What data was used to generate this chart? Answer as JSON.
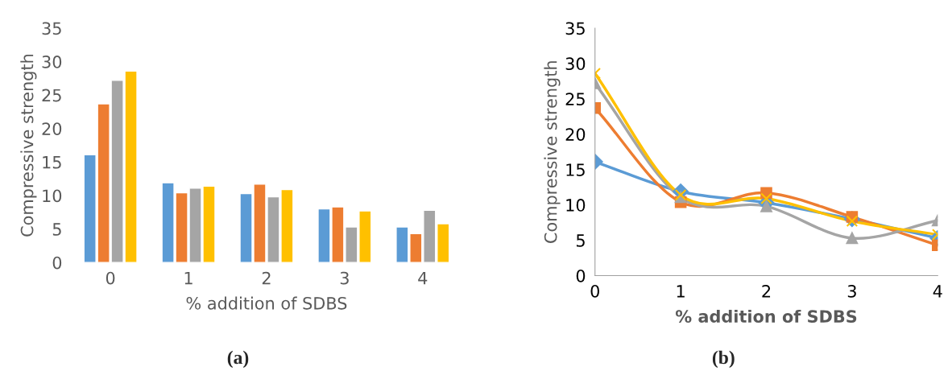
{
  "chart_data": [
    {
      "type": "bar",
      "categories": [
        "0",
        "1",
        "2",
        "3",
        "4"
      ],
      "ylabel": "Compressive strength",
      "xlabel": "% addition of SDBS",
      "ylim": [
        0,
        35
      ],
      "yticks": [
        0,
        5,
        10,
        15,
        20,
        25,
        30,
        35
      ],
      "grid": false,
      "legend": false,
      "annotations": [
        "(a)"
      ],
      "series": [
        {
          "color": "#5b9bd5",
          "values": [
            16.1,
            11.9,
            10.3,
            8.0,
            5.3
          ]
        },
        {
          "color": "#ed7d31",
          "values": [
            23.7,
            10.4,
            11.7,
            8.3,
            4.3
          ]
        },
        {
          "color": "#a5a5a5",
          "values": [
            27.2,
            11.1,
            9.8,
            5.3,
            7.8
          ]
        },
        {
          "color": "#ffc000",
          "values": [
            28.6,
            11.4,
            10.9,
            7.7,
            5.8
          ]
        }
      ]
    },
    {
      "type": "line",
      "x": [
        0,
        1,
        2,
        3,
        4
      ],
      "xlim": [
        0,
        4
      ],
      "xticks": [
        0,
        1,
        2,
        3,
        4
      ],
      "ylim": [
        0,
        35
      ],
      "yticks": [
        0,
        5,
        10,
        15,
        20,
        25,
        30,
        35
      ],
      "ylabel": "Compressive strength",
      "xlabel": "% addition of SDBS",
      "grid": false,
      "legend": false,
      "line_style": "solid",
      "annotations": [
        "(b)"
      ],
      "series": [
        {
          "color": "#5b9bd5",
          "marker": "diamond",
          "values": [
            16.1,
            11.9,
            10.3,
            8.0,
            5.3
          ]
        },
        {
          "color": "#ed7d31",
          "marker": "square",
          "values": [
            23.7,
            10.4,
            11.7,
            8.3,
            4.3
          ]
        },
        {
          "color": "#a5a5a5",
          "marker": "triangle",
          "values": [
            27.2,
            11.1,
            9.8,
            5.3,
            7.8
          ]
        },
        {
          "color": "#ffc000",
          "marker": "cross",
          "values": [
            28.6,
            11.4,
            10.9,
            7.7,
            5.8
          ]
        }
      ]
    }
  ]
}
